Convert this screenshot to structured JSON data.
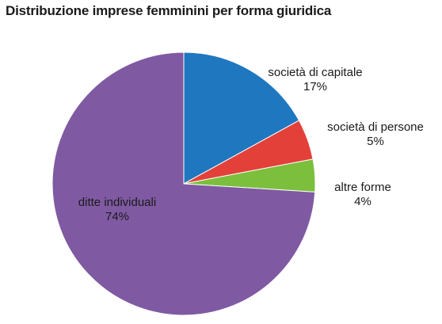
{
  "chart_data": {
    "type": "pie",
    "title": "Distribuzione imprese femminini per forma giuridica",
    "start_angle_deg": 0,
    "direction": "clockwise",
    "slices": [
      {
        "label": "società di capitale",
        "value": 17,
        "value_label": "17%",
        "color": "#1f77bf"
      },
      {
        "label": "società di persone",
        "value": 5,
        "value_label": "5%",
        "color": "#e3403a"
      },
      {
        "label": "altre forme",
        "value": 4,
        "value_label": "4%",
        "color": "#7bbf3c"
      },
      {
        "label": "ditte individuali",
        "value": 74,
        "value_label": "74%",
        "color": "#7f5aa2"
      }
    ]
  }
}
